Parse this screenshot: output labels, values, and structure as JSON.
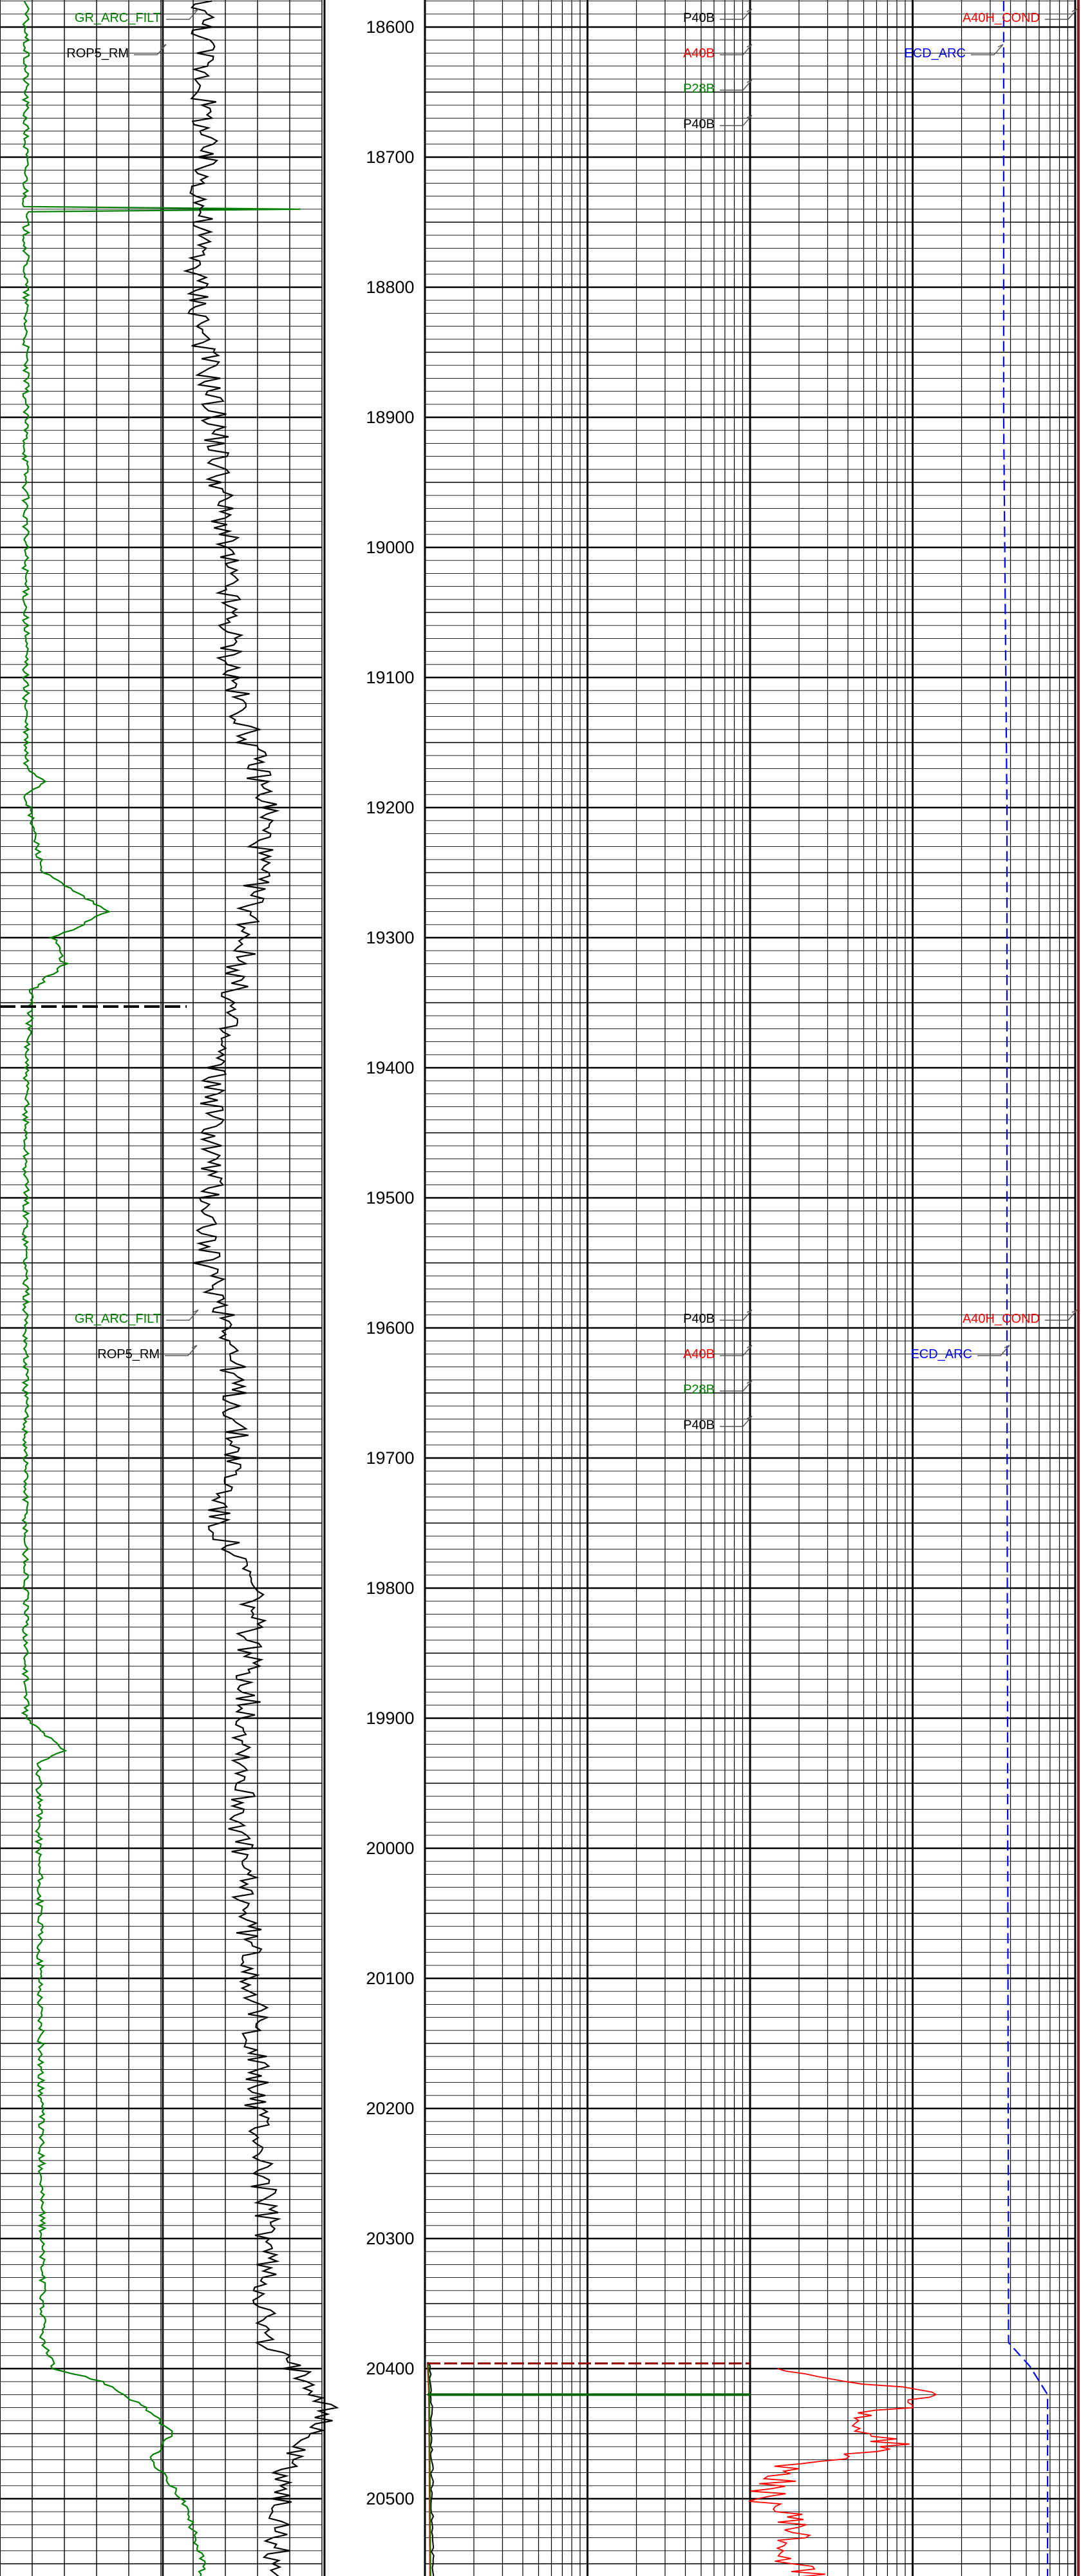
{
  "chart_data": {
    "type": "line",
    "title": "",
    "depth_axis": {
      "ticks": [
        18600,
        18700,
        18800,
        18900,
        19000,
        19100,
        19200,
        19300,
        19400,
        19500,
        19600,
        19700,
        19800,
        19900,
        20000,
        20100,
        20200,
        20300,
        20400,
        20500
      ],
      "range": [
        18580,
        20580
      ]
    },
    "header_blocks": [
      {
        "depth": 18600,
        "track1": [
          {
            "name": "GR_ARC_FILT",
            "color": "#008000"
          },
          {
            "name": "ROP5_RM",
            "color": "#000000"
          }
        ],
        "track2": [
          {
            "name": "P40B",
            "color": "#000000"
          },
          {
            "name": "A40B",
            "color": "#ff0000"
          },
          {
            "name": "P28B",
            "color": "#008000"
          },
          {
            "name": "P40B",
            "color": "#000000"
          }
        ],
        "track3": [
          {
            "name": "A40H_COND",
            "color": "#ff0000"
          },
          {
            "name": "ECD_ARC",
            "color": "#0000ff"
          }
        ]
      },
      {
        "depth": 19600,
        "track1": [
          {
            "name": "GR_ARC_FILT",
            "color": "#008000"
          },
          {
            "name": "ROP5_RM",
            "color": "#000000"
          }
        ],
        "track2": [
          {
            "name": "P40B",
            "color": "#000000"
          },
          {
            "name": "A40B",
            "color": "#ff0000"
          },
          {
            "name": "P28B",
            "color": "#008000"
          },
          {
            "name": "P40B",
            "color": "#000000"
          }
        ],
        "track3": [
          {
            "name": "A40H_COND",
            "color": "#ff0000"
          },
          {
            "name": "ECD_ARC",
            "color": "#0000ff"
          }
        ]
      }
    ],
    "series": [
      {
        "name": "GR_ARC_FILT",
        "color": "#008000",
        "track": 1,
        "scale": [
          0,
          150
        ],
        "points": [
          [
            18580,
            12
          ],
          [
            18700,
            12
          ],
          [
            18738,
            12
          ],
          [
            18740,
            140
          ],
          [
            18742,
            12
          ],
          [
            18900,
            12
          ],
          [
            19170,
            12
          ],
          [
            19180,
            22
          ],
          [
            19190,
            12
          ],
          [
            19250,
            20
          ],
          [
            19270,
            40
          ],
          [
            19280,
            50
          ],
          [
            19290,
            38
          ],
          [
            19300,
            25
          ],
          [
            19320,
            30
          ],
          [
            19340,
            15
          ],
          [
            19400,
            12
          ],
          [
            19600,
            12
          ],
          [
            19900,
            12
          ],
          [
            19925,
            30
          ],
          [
            19935,
            18
          ],
          [
            20380,
            20
          ],
          [
            20400,
            25
          ],
          [
            20410,
            48
          ],
          [
            20430,
            68
          ],
          [
            20450,
            80
          ],
          [
            20470,
            70
          ],
          [
            20500,
            85
          ],
          [
            20550,
            95
          ],
          [
            20580,
            88
          ]
        ]
      },
      {
        "name": "ROP5_RM",
        "color": "#000000",
        "track": 1,
        "scale": [
          0,
          150
        ],
        "points": [
          [
            18580,
            95
          ],
          [
            18700,
            95
          ],
          [
            18800,
            92
          ],
          [
            18900,
            100
          ],
          [
            19000,
            105
          ],
          [
            19100,
            108
          ],
          [
            19200,
            125
          ],
          [
            19300,
            115
          ],
          [
            19400,
            100
          ],
          [
            19500,
            98
          ],
          [
            19550,
            96
          ],
          [
            19600,
            108
          ],
          [
            19700,
            110
          ],
          [
            19750,
            100
          ],
          [
            19800,
            118
          ],
          [
            19900,
            115
          ],
          [
            20000,
            112
          ],
          [
            20100,
            118
          ],
          [
            20200,
            120
          ],
          [
            20300,
            125
          ],
          [
            20380,
            122
          ],
          [
            20410,
            145
          ],
          [
            20430,
            155
          ],
          [
            20470,
            135
          ],
          [
            20500,
            130
          ],
          [
            20580,
            128
          ]
        ]
      },
      {
        "name": "P40B",
        "color": "#000000",
        "track": 2,
        "scale": [
          0,
          50
        ],
        "points": [
          [
            20395,
            0.6
          ],
          [
            20420,
            1.0
          ],
          [
            20580,
            1.2
          ]
        ]
      },
      {
        "name": "A40B",
        "color": "#ff0000",
        "track": 2,
        "scale": [
          0,
          50
        ],
        "points": [
          [
            20395,
            0.4
          ],
          [
            20420,
            0.6
          ],
          [
            20580,
            0.8
          ]
        ]
      },
      {
        "name": "P28B",
        "color": "#008000",
        "track": 2,
        "scale": [
          0,
          50
        ],
        "points": [
          [
            20395,
            0.5
          ],
          [
            20420,
            0.7
          ],
          [
            20580,
            0.9
          ]
        ]
      },
      {
        "name": "A40H_COND",
        "color": "#ff0000",
        "track": 3,
        "scale": [
          0,
          1000
        ],
        "points": [
          [
            20400,
            80
          ],
          [
            20420,
            600
          ],
          [
            20440,
            300
          ],
          [
            20460,
            450
          ],
          [
            20475,
            120
          ],
          [
            20500,
            40
          ],
          [
            20520,
            150
          ],
          [
            20540,
            100
          ],
          [
            20560,
            180
          ],
          [
            20580,
            120
          ]
        ]
      },
      {
        "name": "ECD_ARC",
        "color": "#0000ff",
        "track": 3,
        "scale": [
          0,
          1000
        ],
        "points": [
          [
            18580,
            780
          ],
          [
            18900,
            780
          ],
          [
            19200,
            790
          ],
          [
            19600,
            790
          ],
          [
            20380,
            795
          ],
          [
            20398,
            860
          ],
          [
            20420,
            915
          ],
          [
            20580,
            915
          ]
        ]
      }
    ]
  }
}
